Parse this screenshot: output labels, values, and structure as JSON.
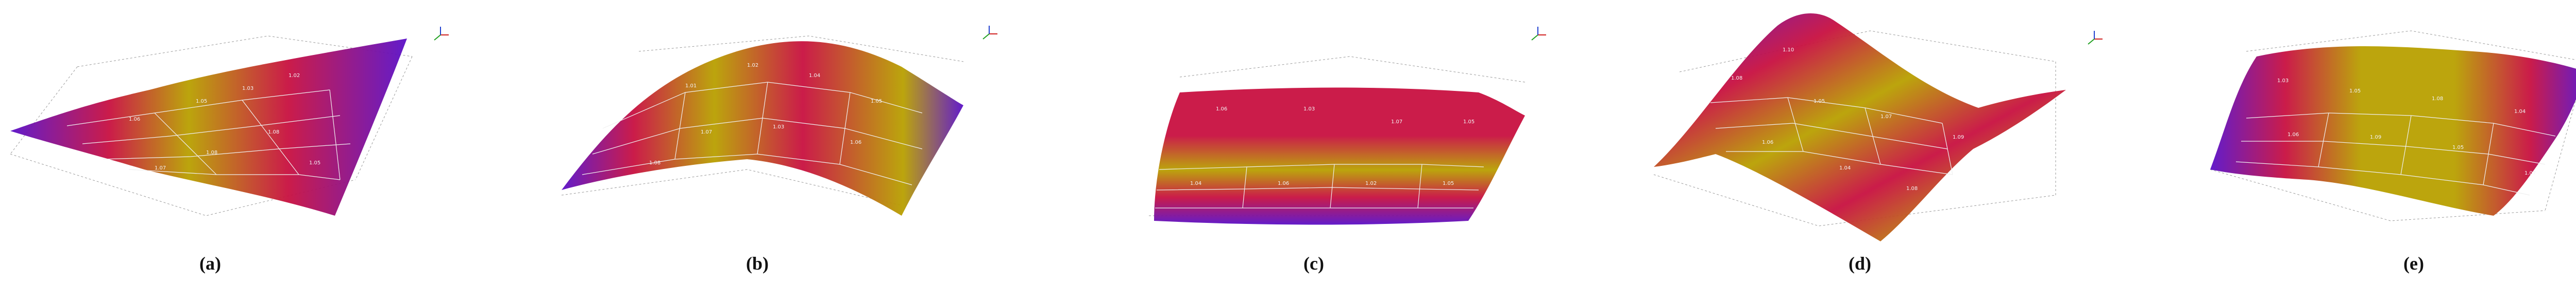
{
  "figure": {
    "panels": [
      {
        "id": "a",
        "label": "(a)",
        "node_values": [
          "1.02",
          "1.03",
          "1.05",
          "1.06",
          "1.08",
          "1.08",
          "1.05",
          "1.07",
          "1.03",
          "1.06",
          "1.09",
          "1.04"
        ]
      },
      {
        "id": "b",
        "label": "(b)",
        "node_values": [
          "1.01",
          "1.02",
          "1.04",
          "1.05",
          "1.07",
          "1.03",
          "1.06",
          "1.08",
          "1.02",
          "1.05",
          "1.07",
          "1.04"
        ]
      },
      {
        "id": "c",
        "label": "(c)",
        "node_values": [
          "1.06",
          "1.03",
          "1.07",
          "1.05",
          "1.04",
          "1.06",
          "1.02",
          "1.05",
          "1.08",
          "1.03",
          "1.06",
          "1.04"
        ]
      },
      {
        "id": "d",
        "label": "(d)",
        "node_values": [
          "1.10",
          "1.08",
          "1.05",
          "1.07",
          "1.09",
          "1.06",
          "1.04",
          "1.08",
          "1.11",
          "1.05",
          "1.07",
          "1.09"
        ]
      },
      {
        "id": "e",
        "label": "(e)",
        "node_values": [
          "1.03",
          "1.05",
          "1.08",
          "1.04",
          "1.06",
          "1.09",
          "1.05",
          "1.07",
          "1.04",
          "1.06",
          "1.08",
          "1.05"
        ]
      }
    ],
    "colors": {
      "surface_low": "#5a10c8",
      "surface_mid": "#c81040",
      "surface_high": "#b8a000",
      "grid": "#e8e8e8",
      "frame": "#9a9a9a",
      "axis_x": "#d02020",
      "axis_y": "#20a020",
      "axis_z": "#2040d0"
    }
  }
}
